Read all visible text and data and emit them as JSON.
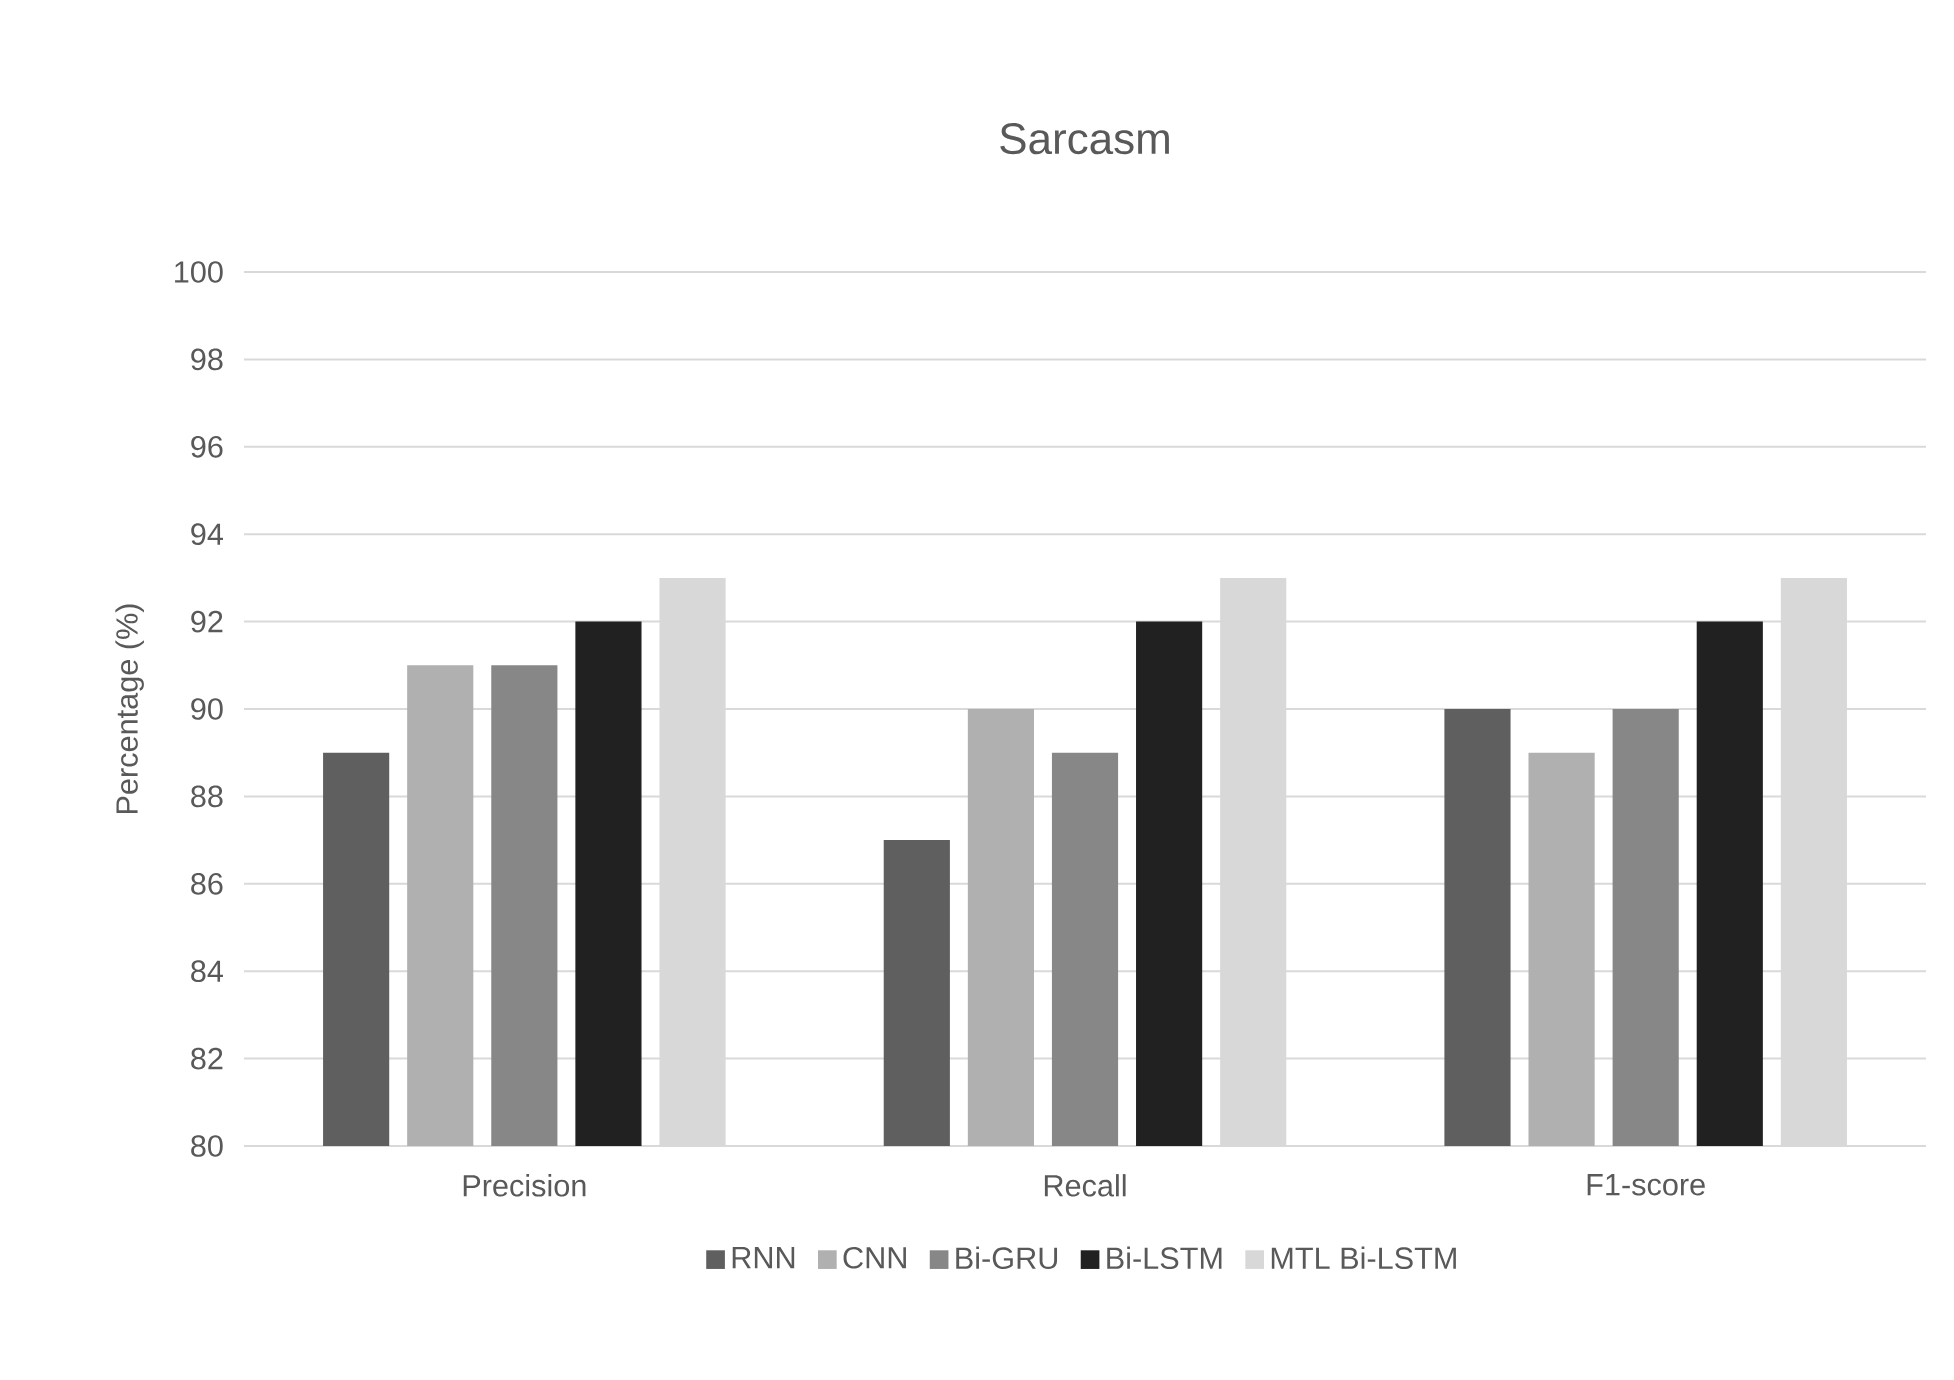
{
  "chart_data": {
    "type": "bar",
    "title": "Sarcasm",
    "ylabel": "Percentage (%)",
    "categories": [
      "Precision",
      "Recall",
      "F1-score"
    ],
    "series": [
      {
        "name": "RNN",
        "color": "#5f5f5f",
        "values": [
          89,
          87,
          90
        ]
      },
      {
        "name": "CNN",
        "color": "#b0b0b0",
        "values": [
          91,
          90,
          89
        ]
      },
      {
        "name": "Bi-GRU",
        "color": "#878787",
        "values": [
          91,
          89,
          90
        ]
      },
      {
        "name": "Bi-LSTM",
        "color": "#212121",
        "values": [
          92,
          92,
          92
        ]
      },
      {
        "name": "MTL Bi-LSTM",
        "color": "#d8d8d8",
        "values": [
          93,
          93,
          93
        ]
      }
    ],
    "ylim": [
      80,
      100
    ],
    "yticks": [
      80,
      82,
      84,
      86,
      88,
      90,
      92,
      94,
      96,
      98,
      100
    ],
    "grid": "y",
    "legend": "bottom"
  }
}
